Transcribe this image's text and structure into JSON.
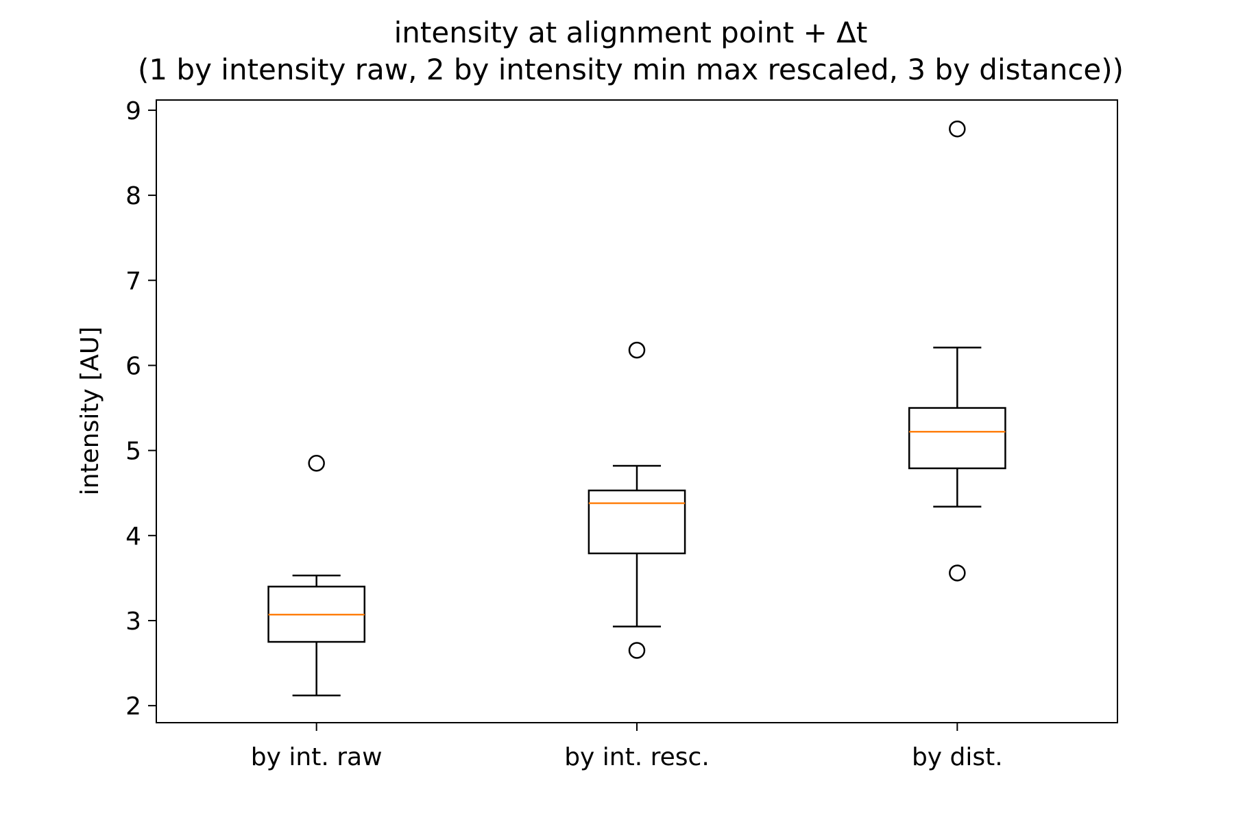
{
  "chart_data": {
    "type": "boxplot",
    "title": "intensity at alignment point + Δt",
    "subtitle": "(1 by intensity raw, 2 by intensity min max rescaled, 3 by distance))",
    "xlabel": "",
    "ylabel": "intensity [AU]",
    "ylim": [
      1.8,
      9.12
    ],
    "yticks": [
      "2",
      "3",
      "4",
      "5",
      "6",
      "7",
      "8",
      "9"
    ],
    "grid": false,
    "colors": {
      "box": "#000000",
      "median": "#ff7f0e",
      "background": "#ffffff"
    },
    "categories": [
      "by int. raw",
      "by int. resc.",
      "by dist."
    ],
    "boxes": [
      {
        "whisker_low": 2.12,
        "q1": 2.75,
        "median": 3.07,
        "q3": 3.4,
        "whisker_high": 3.53,
        "outliers": [
          4.85
        ]
      },
      {
        "whisker_low": 2.93,
        "q1": 3.79,
        "median": 4.38,
        "q3": 4.53,
        "whisker_high": 4.82,
        "outliers": [
          2.65,
          6.18
        ]
      },
      {
        "whisker_low": 4.34,
        "q1": 4.79,
        "median": 5.22,
        "q3": 5.5,
        "whisker_high": 6.21,
        "outliers": [
          3.56,
          8.78
        ]
      }
    ]
  }
}
